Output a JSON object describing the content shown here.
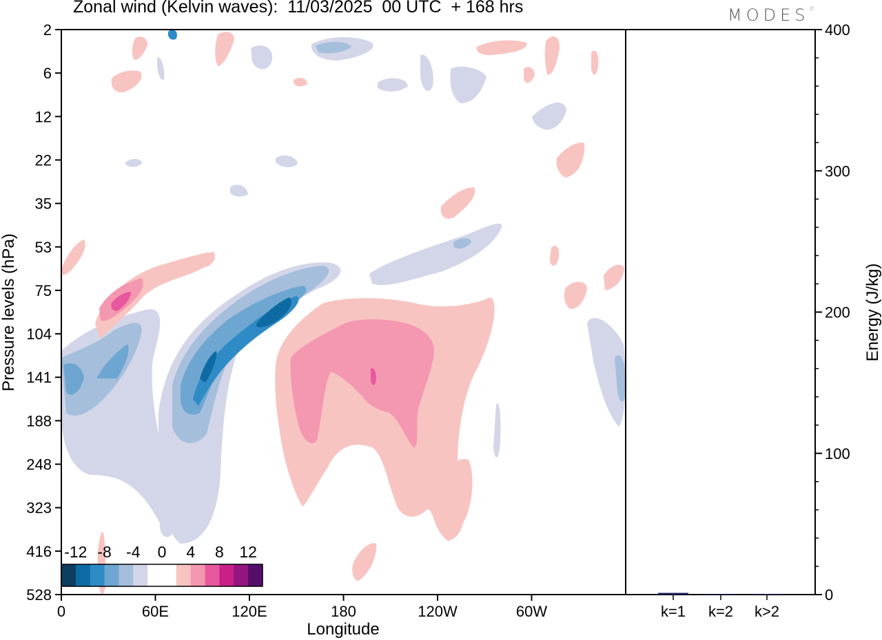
{
  "header": {
    "title": "Zonal wind (Kelvin waves):  11/03/2025  00 UTC  + 168 hrs",
    "brand": "MODES"
  },
  "chart_data": [
    {
      "type": "heatmap",
      "title": "Zonal wind (Kelvin waves):  11/03/2025  00 UTC  + 168 hrs",
      "xlabel": "Longitude",
      "ylabel": "Pressure levels (hPa)",
      "x_ticks": [
        "0",
        "60E",
        "120E",
        "180",
        "120W",
        "60W"
      ],
      "x_tick_values": [
        0,
        60,
        120,
        180,
        240,
        300
      ],
      "xlim": [
        0,
        360
      ],
      "y_ticks": [
        "2",
        "6",
        "12",
        "22",
        "35",
        "53",
        "75",
        "104",
        "141",
        "188",
        "248",
        "323",
        "416",
        "528"
      ],
      "y_axis": "pressure levels (hPa), 2 at top, 528 at bottom",
      "colorbar": {
        "labels": [
          "-12",
          "-8",
          "-4",
          "0",
          "4",
          "8",
          "12"
        ],
        "colors": [
          "#0b3d5e",
          "#0e6aa3",
          "#2f8bc6",
          "#6ea6d2",
          "#a5bedc",
          "#d3d6e8",
          "#ffffff",
          "#ffffff",
          "#f8c4c1",
          "#f497b0",
          "#e8589e",
          "#c81f8a",
          "#93167e",
          "#540f6b"
        ]
      },
      "features": [
        {
          "sign": "negative",
          "peak": -12,
          "longitude": [
            60,
            140
          ],
          "pressure": [
            75,
            248
          ],
          "desc": "tilted band of easterly anomaly"
        },
        {
          "sign": "negative",
          "peak": -8,
          "longitude": [
            0,
            55
          ],
          "pressure": [
            104,
            248
          ]
        },
        {
          "sign": "positive",
          "peak": 8,
          "longitude": [
            20,
            50
          ],
          "pressure": [
            53,
            104
          ]
        },
        {
          "sign": "positive",
          "peak": 8,
          "longitude": [
            145,
            275
          ],
          "pressure": [
            75,
            416
          ]
        }
      ]
    },
    {
      "type": "bar",
      "categories": [
        "k=1",
        "k=2",
        "k>2"
      ],
      "values": [
        1.2,
        0.3,
        0.5
      ],
      "ylabel": "Energy (J/kg)",
      "y_ticks": [
        "0",
        "100",
        "200",
        "300",
        "400"
      ],
      "ylim": [
        0,
        400
      ],
      "bar_color": "#1a1f5e"
    }
  ]
}
